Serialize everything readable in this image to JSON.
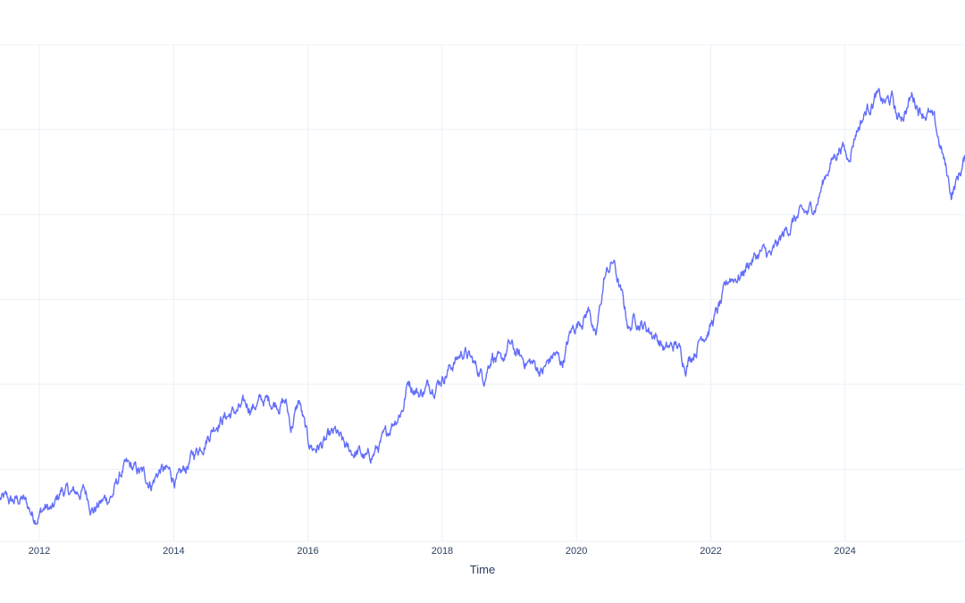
{
  "chart_data": {
    "type": "line",
    "title": "",
    "xlabel": "Time",
    "ylabel": "",
    "grid": true,
    "legend": "none",
    "x_ticks": [
      "2012",
      "2014",
      "2016",
      "2018",
      "2020",
      "2022",
      "2024"
    ],
    "xlim": [
      "2011-06-01",
      "2025-10-15"
    ],
    "ylim": [
      0.33,
      1.5
    ],
    "y_gridlines": [
      0.5,
      0.7,
      0.9,
      1.1,
      1.3,
      1.5
    ],
    "series": [
      {
        "color": "#636efa",
        "x": [
          "2011-06-01",
          "2011-08-01",
          "2011-10-01",
          "2011-12-01",
          "2012-02-01",
          "2012-03-15",
          "2012-05-01",
          "2012-07-01",
          "2012-09-01",
          "2012-10-20",
          "2012-12-01",
          "2013-02-01",
          "2013-04-01",
          "2013-05-01",
          "2013-07-01",
          "2013-09-01",
          "2013-10-20",
          "2013-12-01",
          "2014-02-01",
          "2014-04-01",
          "2014-06-01",
          "2014-07-01",
          "2014-09-01",
          "2014-11-01",
          "2015-01-01",
          "2015-03-01",
          "2015-05-01",
          "2015-07-01",
          "2015-09-01",
          "2015-10-01",
          "2015-11-15",
          "2016-01-01",
          "2016-02-01",
          "2016-04-01",
          "2016-06-01",
          "2016-08-01",
          "2016-10-01",
          "2016-11-20",
          "2017-01-15",
          "2017-03-01",
          "2017-04-01",
          "2017-06-01",
          "2017-07-01",
          "2017-09-01",
          "2017-11-01",
          "2018-01-01",
          "2018-03-01",
          "2018-05-01",
          "2018-07-01",
          "2018-08-15",
          "2018-10-01",
          "2018-11-15",
          "2019-01-01",
          "2019-03-01",
          "2019-05-01",
          "2019-07-01",
          "2019-09-01",
          "2019-10-15",
          "2019-12-01",
          "2020-01-15",
          "2020-03-15",
          "2020-04-15",
          "2020-06-01",
          "2020-07-20",
          "2020-08-15",
          "2020-10-15",
          "2020-11-15",
          "2021-01-01",
          "2021-03-01",
          "2021-05-01",
          "2021-07-01",
          "2021-08-15",
          "2021-10-15",
          "2021-11-15",
          "2022-01-01",
          "2022-03-01",
          "2022-04-15",
          "2022-06-15",
          "2022-08-01",
          "2022-10-01",
          "2022-12-01",
          "2023-02-01",
          "2023-04-01",
          "2023-06-15",
          "2023-08-01",
          "2023-10-01",
          "2023-12-15",
          "2024-01-15",
          "2024-03-01",
          "2024-05-01",
          "2024-06-15",
          "2024-08-01",
          "2024-09-15",
          "2024-10-15",
          "2024-11-15",
          "2025-01-01",
          "2025-02-15",
          "2025-04-01",
          "2025-05-01",
          "2025-06-15",
          "2025-08-01",
          "2025-09-01",
          "2025-10-15"
        ],
        "y": [
          0.43,
          0.42,
          0.43,
          0.39,
          0.41,
          0.4,
          0.45,
          0.44,
          0.45,
          0.41,
          0.42,
          0.44,
          0.5,
          0.5,
          0.49,
          0.47,
          0.5,
          0.49,
          0.47,
          0.52,
          0.56,
          0.58,
          0.62,
          0.63,
          0.64,
          0.65,
          0.66,
          0.66,
          0.66,
          0.6,
          0.66,
          0.56,
          0.55,
          0.56,
          0.58,
          0.54,
          0.54,
          0.52,
          0.55,
          0.57,
          0.61,
          0.65,
          0.71,
          0.68,
          0.7,
          0.72,
          0.75,
          0.78,
          0.74,
          0.72,
          0.78,
          0.74,
          0.79,
          0.76,
          0.75,
          0.73,
          0.77,
          0.75,
          0.82,
          0.85,
          0.88,
          0.8,
          0.95,
          0.99,
          0.94,
          0.83,
          0.86,
          0.84,
          0.82,
          0.78,
          0.79,
          0.75,
          0.79,
          0.82,
          0.84,
          0.89,
          0.95,
          0.96,
          0.99,
          1.01,
          1.0,
          1.05,
          1.09,
          1.1,
          1.13,
          1.21,
          1.27,
          1.23,
          1.3,
          1.35,
          1.38,
          1.36,
          1.37,
          1.32,
          1.34,
          1.38,
          1.35,
          1.34,
          1.31,
          1.24,
          1.15,
          1.18,
          1.23
        ]
      }
    ]
  }
}
